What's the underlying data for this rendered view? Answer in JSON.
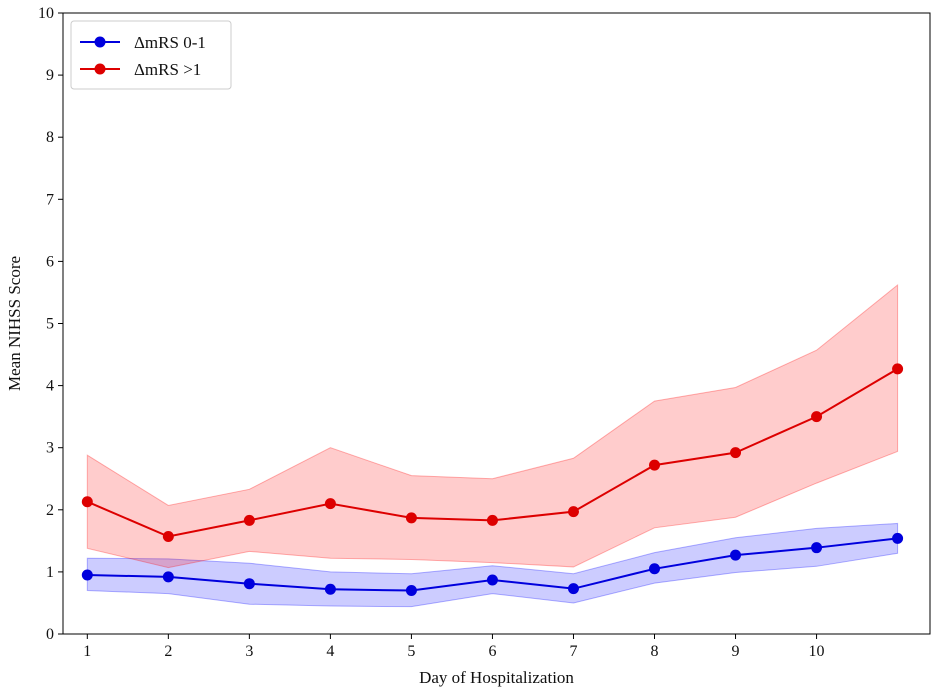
{
  "chart_data": {
    "type": "line",
    "title": "",
    "xlabel": "Day of Hospitalization",
    "ylabel": "Mean NIHSS Score",
    "xlim": [
      0.7,
      11.4
    ],
    "ylim": [
      0,
      10
    ],
    "x_ticks": [
      1,
      2,
      3,
      4,
      5,
      6,
      7,
      8,
      9,
      10
    ],
    "y_ticks": [
      0,
      1,
      2,
      3,
      4,
      5,
      6,
      7,
      8,
      9,
      10
    ],
    "legend_position": "top-left",
    "series": [
      {
        "name": "ΔmRS 0-1",
        "color": "#0000dd",
        "band_color": "#0000ff",
        "x": [
          1,
          2,
          3,
          4,
          5,
          6,
          7,
          8,
          9,
          10,
          11
        ],
        "values": [
          0.95,
          0.92,
          0.81,
          0.72,
          0.7,
          0.87,
          0.73,
          1.05,
          1.27,
          1.39,
          1.54
        ],
        "lower": [
          0.7,
          0.65,
          0.48,
          0.45,
          0.44,
          0.65,
          0.5,
          0.82,
          0.99,
          1.09,
          1.3
        ],
        "upper": [
          1.22,
          1.21,
          1.14,
          1.0,
          0.97,
          1.1,
          0.97,
          1.31,
          1.55,
          1.7,
          1.78
        ]
      },
      {
        "name": "ΔmRS >1",
        "color": "#dd0000",
        "band_color": "#ff0000",
        "x": [
          1,
          2,
          3,
          4,
          5,
          6,
          7,
          8,
          9,
          10,
          11
        ],
        "values": [
          2.13,
          1.57,
          1.83,
          2.1,
          1.87,
          1.83,
          1.97,
          2.72,
          2.92,
          3.5,
          4.27
        ],
        "lower": [
          1.38,
          1.07,
          1.33,
          1.22,
          1.2,
          1.15,
          1.08,
          1.71,
          1.88,
          2.43,
          2.94
        ],
        "upper": [
          2.88,
          2.07,
          2.33,
          3.0,
          2.55,
          2.5,
          2.83,
          3.75,
          3.97,
          4.57,
          5.62
        ]
      }
    ]
  }
}
